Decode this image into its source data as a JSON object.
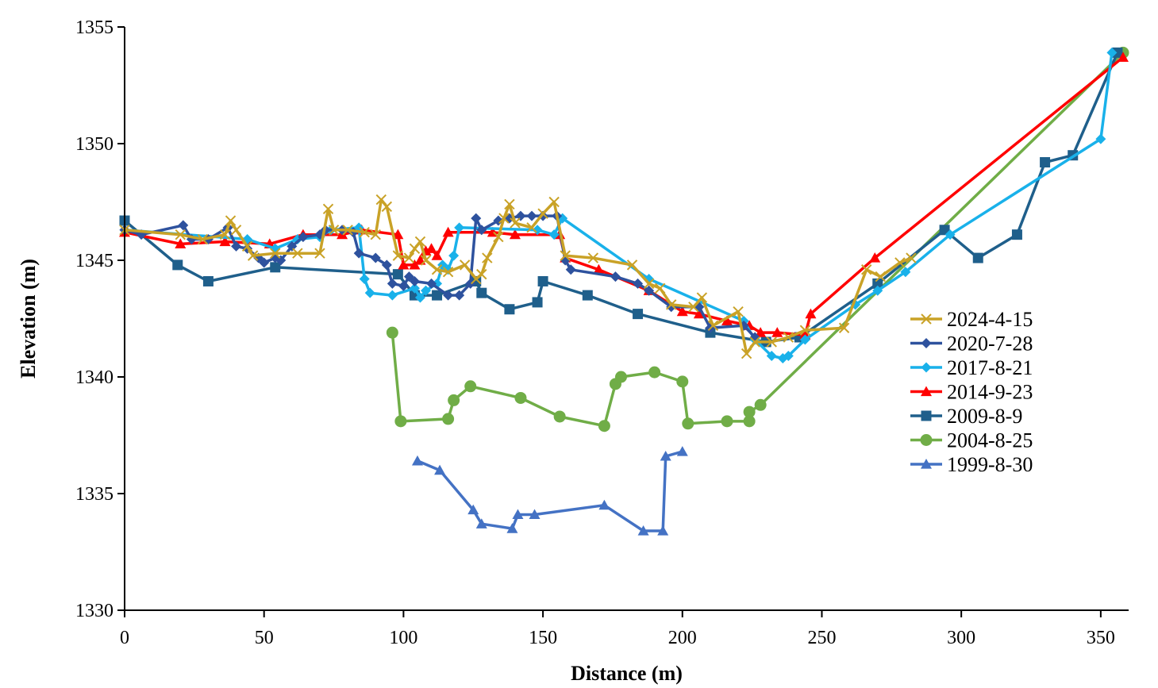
{
  "chart_data": {
    "type": "line",
    "title": "",
    "xlabel": "Distance (m)",
    "ylabel": "Elevation (m)",
    "xlim": [
      0,
      360
    ],
    "ylim": [
      1330,
      1355
    ],
    "x_ticks": [
      0,
      50,
      100,
      150,
      200,
      250,
      300,
      350
    ],
    "y_ticks": [
      1330,
      1335,
      1340,
      1345,
      1350,
      1355
    ],
    "grid": false,
    "legend_position": "right",
    "series": [
      {
        "name": "2024-4-15",
        "color": "#c9a227",
        "marker": "x",
        "points": [
          [
            0,
            1346.3
          ],
          [
            20,
            1346.1
          ],
          [
            28,
            1345.9
          ],
          [
            36,
            1346.1
          ],
          [
            38,
            1346.7
          ],
          [
            40,
            1346.3
          ],
          [
            44,
            1345.6
          ],
          [
            46,
            1345.2
          ],
          [
            54,
            1345.3
          ],
          [
            62,
            1345.3
          ],
          [
            70,
            1345.3
          ],
          [
            73,
            1347.2
          ],
          [
            75,
            1346.3
          ],
          [
            80,
            1346.3
          ],
          [
            86,
            1346.2
          ],
          [
            90,
            1346.1
          ],
          [
            92,
            1347.6
          ],
          [
            94,
            1347.3
          ],
          [
            98,
            1345.2
          ],
          [
            102,
            1345.1
          ],
          [
            104,
            1345.5
          ],
          [
            106,
            1345.8
          ],
          [
            108,
            1345.0
          ],
          [
            112,
            1344.6
          ],
          [
            116,
            1344.5
          ],
          [
            122,
            1344.8
          ],
          [
            126,
            1344.2
          ],
          [
            128,
            1344.4
          ],
          [
            130,
            1345.1
          ],
          [
            134,
            1346.0
          ],
          [
            136,
            1346.8
          ],
          [
            138,
            1347.4
          ],
          [
            140,
            1346.6
          ],
          [
            146,
            1346.4
          ],
          [
            150,
            1347.0
          ],
          [
            154,
            1347.5
          ],
          [
            158,
            1345.2
          ],
          [
            168,
            1345.1
          ],
          [
            182,
            1344.8
          ],
          [
            188,
            1344.0
          ],
          [
            192,
            1343.8
          ],
          [
            196,
            1343.1
          ],
          [
            204,
            1343.0
          ],
          [
            207,
            1343.4
          ],
          [
            211,
            1342.2
          ],
          [
            220,
            1342.8
          ],
          [
            223,
            1341.0
          ],
          [
            226,
            1341.5
          ],
          [
            232,
            1341.5
          ],
          [
            238,
            1341.7
          ],
          [
            244,
            1342.0
          ],
          [
            258,
            1342.1
          ],
          [
            266,
            1344.6
          ],
          [
            271,
            1344.3
          ],
          [
            278,
            1344.9
          ],
          [
            282,
            1345.1
          ]
        ]
      },
      {
        "name": "2020-7-28",
        "color": "#2e529e",
        "marker": "diamond",
        "points": [
          [
            0,
            1346.3
          ],
          [
            6,
            1346.1
          ],
          [
            21,
            1346.5
          ],
          [
            24,
            1345.9
          ],
          [
            30,
            1345.9
          ],
          [
            37,
            1346.4
          ],
          [
            40,
            1345.6
          ],
          [
            44,
            1345.5
          ],
          [
            48,
            1345.1
          ],
          [
            50,
            1344.9
          ],
          [
            54,
            1345.1
          ],
          [
            56,
            1345.0
          ],
          [
            60,
            1345.6
          ],
          [
            64,
            1346.0
          ],
          [
            70,
            1346.1
          ],
          [
            72,
            1346.3
          ],
          [
            78,
            1346.3
          ],
          [
            82,
            1346.2
          ],
          [
            84,
            1345.3
          ],
          [
            90,
            1345.1
          ],
          [
            94,
            1344.8
          ],
          [
            96,
            1344.0
          ],
          [
            100,
            1343.9
          ],
          [
            102,
            1344.3
          ],
          [
            104,
            1344.1
          ],
          [
            110,
            1344.0
          ],
          [
            116,
            1343.5
          ],
          [
            120,
            1343.5
          ],
          [
            124,
            1344.0
          ],
          [
            126,
            1346.8
          ],
          [
            128,
            1346.3
          ],
          [
            134,
            1346.7
          ],
          [
            138,
            1346.8
          ],
          [
            142,
            1346.9
          ],
          [
            146,
            1346.9
          ],
          [
            150,
            1346.9
          ],
          [
            155,
            1346.9
          ],
          [
            158,
            1345.0
          ],
          [
            160,
            1344.6
          ],
          [
            176,
            1344.3
          ],
          [
            184,
            1344.0
          ],
          [
            188,
            1343.7
          ],
          [
            196,
            1343.0
          ],
          [
            206,
            1343.0
          ],
          [
            210,
            1342.1
          ],
          [
            222,
            1342.2
          ],
          [
            226,
            1341.7
          ]
        ]
      },
      {
        "name": "2017-8-21",
        "color": "#19b1ea",
        "marker": "diamond",
        "points": [
          [
            0,
            1346.3
          ],
          [
            44,
            1345.9
          ],
          [
            54,
            1345.5
          ],
          [
            62,
            1345.9
          ],
          [
            70,
            1346.0
          ],
          [
            74,
            1346.3
          ],
          [
            84,
            1346.4
          ],
          [
            86,
            1344.2
          ],
          [
            88,
            1343.6
          ],
          [
            96,
            1343.5
          ],
          [
            104,
            1343.8
          ],
          [
            106,
            1343.4
          ],
          [
            108,
            1343.7
          ],
          [
            112,
            1344.0
          ],
          [
            114,
            1344.8
          ],
          [
            116,
            1344.6
          ],
          [
            118,
            1345.2
          ],
          [
            120,
            1346.4
          ],
          [
            148,
            1346.3
          ],
          [
            154,
            1346.1
          ],
          [
            157,
            1346.8
          ],
          [
            188,
            1344.2
          ],
          [
            222,
            1342.4
          ],
          [
            226,
            1341.6
          ],
          [
            232,
            1340.9
          ],
          [
            236,
            1340.8
          ],
          [
            238,
            1340.9
          ],
          [
            244,
            1341.6
          ],
          [
            262,
            1343.1
          ],
          [
            270,
            1343.7
          ],
          [
            280,
            1344.5
          ],
          [
            296,
            1346.1
          ],
          [
            350,
            1350.2
          ],
          [
            354,
            1353.9
          ]
        ]
      },
      {
        "name": "2014-9-23",
        "color": "#ff0000",
        "marker": "triangle",
        "points": [
          [
            0,
            1346.2
          ],
          [
            20,
            1345.7
          ],
          [
            36,
            1345.8
          ],
          [
            52,
            1345.7
          ],
          [
            64,
            1346.1
          ],
          [
            78,
            1346.1
          ],
          [
            85,
            1346.3
          ],
          [
            98,
            1346.1
          ],
          [
            100,
            1344.8
          ],
          [
            104,
            1344.8
          ],
          [
            106,
            1345.0
          ],
          [
            108,
            1345.4
          ],
          [
            110,
            1345.5
          ],
          [
            112,
            1345.2
          ],
          [
            116,
            1346.2
          ],
          [
            132,
            1346.2
          ],
          [
            140,
            1346.1
          ],
          [
            156,
            1346.1
          ],
          [
            158,
            1345.1
          ],
          [
            170,
            1344.6
          ],
          [
            188,
            1343.7
          ],
          [
            200,
            1342.8
          ],
          [
            206,
            1342.7
          ],
          [
            216,
            1342.4
          ],
          [
            224,
            1342.2
          ],
          [
            228,
            1341.9
          ],
          [
            234,
            1341.9
          ],
          [
            244,
            1341.8
          ],
          [
            246,
            1342.7
          ],
          [
            269,
            1345.1
          ],
          [
            358,
            1353.7
          ]
        ]
      },
      {
        "name": "2009-8-9",
        "color": "#1f5f8b",
        "marker": "square",
        "points": [
          [
            0,
            1346.7
          ],
          [
            19,
            1344.8
          ],
          [
            30,
            1344.1
          ],
          [
            54,
            1344.7
          ],
          [
            98,
            1344.4
          ],
          [
            104,
            1343.5
          ],
          [
            112,
            1343.5
          ],
          [
            126,
            1344.1
          ],
          [
            128,
            1343.6
          ],
          [
            138,
            1342.9
          ],
          [
            148,
            1343.2
          ],
          [
            150,
            1344.1
          ],
          [
            166,
            1343.5
          ],
          [
            184,
            1342.7
          ],
          [
            210,
            1341.9
          ],
          [
            230,
            1341.5
          ],
          [
            242,
            1341.7
          ],
          [
            270,
            1344.0
          ],
          [
            294,
            1346.3
          ],
          [
            306,
            1345.1
          ],
          [
            320,
            1346.1
          ],
          [
            330,
            1349.2
          ],
          [
            340,
            1349.5
          ],
          [
            356,
            1353.9
          ]
        ]
      },
      {
        "name": "2004-8-25",
        "color": "#70ad47",
        "marker": "circle",
        "points": [
          [
            96,
            1341.9
          ],
          [
            99,
            1338.1
          ],
          [
            116,
            1338.2
          ],
          [
            118,
            1339.0
          ],
          [
            124,
            1339.6
          ],
          [
            142,
            1339.1
          ],
          [
            156,
            1338.3
          ],
          [
            172,
            1337.9
          ],
          [
            176,
            1339.7
          ],
          [
            178,
            1340.0
          ],
          [
            190,
            1340.2
          ],
          [
            200,
            1339.8
          ],
          [
            202,
            1338.0
          ],
          [
            216,
            1338.1
          ],
          [
            224,
            1338.1
          ],
          [
            224,
            1338.5
          ],
          [
            228,
            1338.8
          ],
          [
            358,
            1353.9
          ]
        ]
      },
      {
        "name": "1999-8-30",
        "color": "#4472c4",
        "marker": "triangle",
        "points": [
          [
            105,
            1336.4
          ],
          [
            113,
            1336.0
          ],
          [
            125,
            1334.3
          ],
          [
            128,
            1333.7
          ],
          [
            139,
            1333.5
          ],
          [
            141,
            1334.1
          ],
          [
            147,
            1334.1
          ],
          [
            172,
            1334.5
          ],
          [
            186,
            1333.4
          ],
          [
            193,
            1333.4
          ],
          [
            194,
            1336.6
          ],
          [
            200,
            1336.8
          ]
        ]
      }
    ]
  }
}
